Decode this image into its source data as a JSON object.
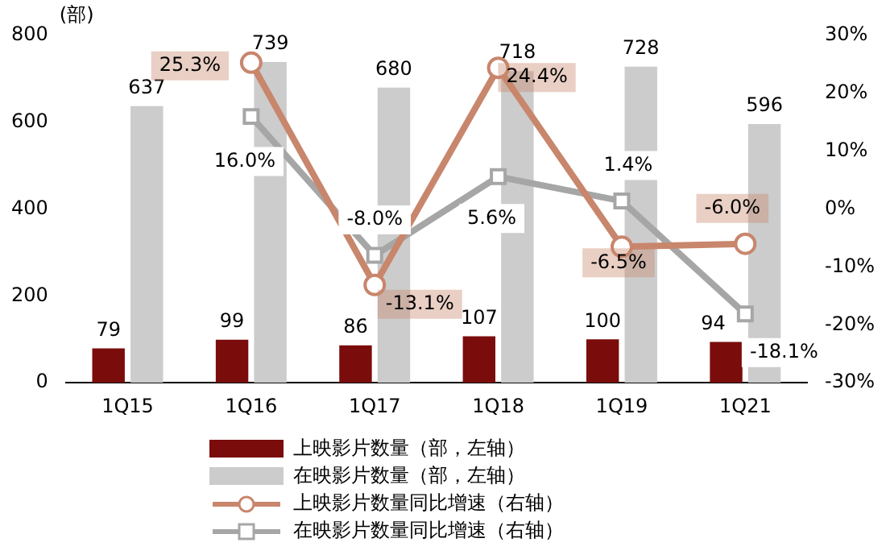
{
  "chart_data": {
    "type": "bar",
    "ylabel": "(部)",
    "categories": [
      "1Q15",
      "1Q16",
      "1Q17",
      "1Q18",
      "1Q19",
      "1Q21"
    ],
    "series": [
      {
        "name": "上映影片数量（部，左轴）",
        "type": "bar",
        "color": "#7b0c0c",
        "values": [
          79,
          99,
          86,
          107,
          100,
          94
        ],
        "value_labels": [
          "79",
          "99",
          "86",
          "107",
          "100",
          "94"
        ]
      },
      {
        "name": "在映影片数量（部，左轴）",
        "type": "bar",
        "color": "#cccccc",
        "values": [
          637,
          739,
          680,
          718,
          728,
          596
        ],
        "value_labels": [
          "637",
          "739",
          "680",
          "718",
          "728",
          "596"
        ]
      },
      {
        "name": "上映影片数量同比增速（右轴）",
        "type": "line",
        "axis": "y2",
        "marker": "circle",
        "color": "#c8866c",
        "values": [
          null,
          25.3,
          -13.1,
          24.4,
          -6.5,
          -6.0
        ],
        "value_labels": [
          null,
          "25.3%",
          "-13.1%",
          "24.4%",
          "-6.5%",
          "-6.0%"
        ]
      },
      {
        "name": "在映影片数量同比增速（右轴）",
        "type": "line",
        "axis": "y2",
        "marker": "square",
        "color": "#a6a6a6",
        "values": [
          null,
          16.0,
          -8.0,
          5.6,
          1.4,
          -18.1
        ],
        "value_labels": [
          null,
          "16.0%",
          "-8.0%",
          "5.6%",
          "1.4%",
          "-18.1%"
        ]
      }
    ],
    "ylim": [
      0,
      800
    ],
    "yticks": [
      0,
      200,
      400,
      600,
      800
    ],
    "y2lim": [
      -30,
      30
    ],
    "y2ticks": [
      {
        "value": -30,
        "label": "-30%"
      },
      {
        "value": -20,
        "label": "-20%"
      },
      {
        "value": -10,
        "label": "-10%"
      },
      {
        "value": 0,
        "label": "0%"
      },
      {
        "value": 10,
        "label": "10%"
      },
      {
        "value": 20,
        "label": "20%"
      },
      {
        "value": 30,
        "label": "30%"
      }
    ],
    "grid": false,
    "legend": "bottom"
  }
}
